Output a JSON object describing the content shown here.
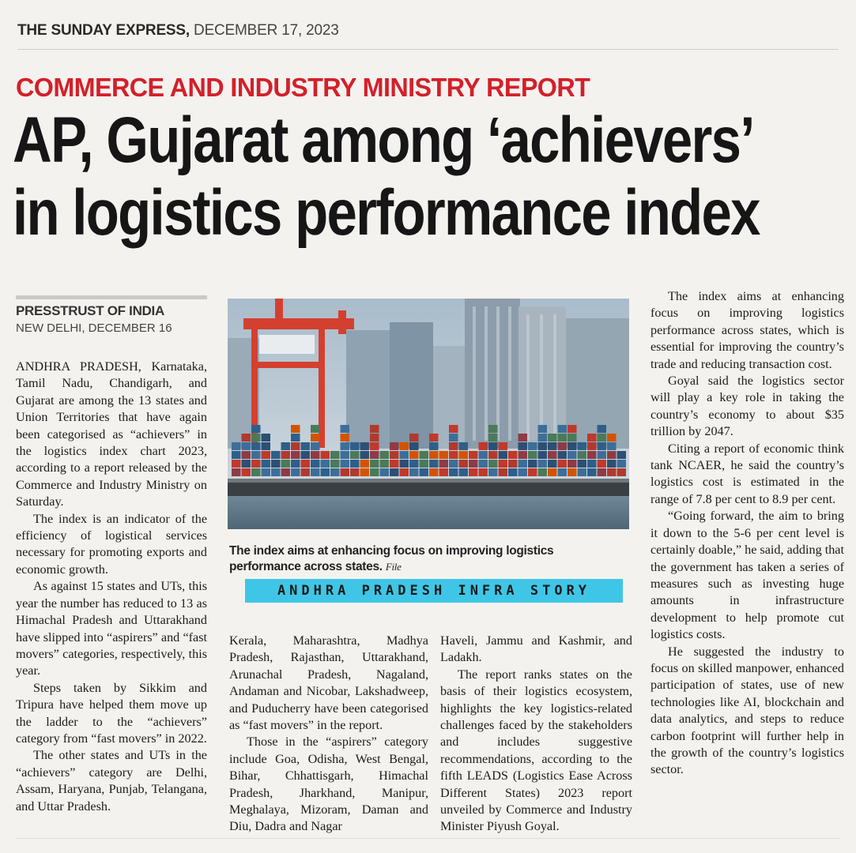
{
  "masthead": {
    "paper": "THE SUNDAY EXPRESS,",
    "date": "DECEMBER 17, 2023"
  },
  "kicker": "COMMERCE AND INDUSTRY MINISTRY REPORT",
  "headline": {
    "line1": "AP, Gujarat among ‘achievers’",
    "line2": "in logistics performance index"
  },
  "byline": {
    "agency": "PRESSTRUST OF INDIA",
    "dateline": "NEW DELHI, DECEMBER 16"
  },
  "photo": {
    "caption": "The index aims at enhancing focus on improving logistics performance across states.",
    "credit": "File",
    "alt": "container-port-with-cranes"
  },
  "banner": "ANDHRA PRADESH INFRA STORY",
  "colors": {
    "kicker": "#d3202a",
    "banner": "#3fc6e6"
  },
  "col1": [
    "ANDHRA PRADESH, Karnataka, Tamil Nadu, Chandigarh, and Gujarat are among the 13 states and Union Territories that have again been categorised as “achievers” in the logistics index chart 2023, according to a report released by the Commerce and Industry Ministry on Saturday.",
    "The index is an indicator of the efficiency of logistical services necessary for promoting exports and economic growth.",
    "As against 15 states and UTs, this year the number has reduced to 13 as Himachal Pradesh and Uttarakhand have slipped into “aspirers” and “fast movers” categories, respectively, this year.",
    "Steps taken by Sikkim and Tripura have helped them move up the ladder to the “achievers” category from “fast movers” in 2022.",
    "The other states and UTs in the “achievers” category are Delhi, Assam, Haryana, Punjab, Telangana, and Uttar Pradesh."
  ],
  "col2": [
    "Kerala, Maharashtra, Madhya Pradesh, Rajasthan, Uttarakhand, Arunachal Pradesh, Nagaland, Andaman and Nicobar, Lakshadweep, and Puducherry have been categorised as “fast movers” in the report.",
    "Those in the “aspirers” category include Goa, Odisha, West Bengal, Bihar, Chhattisgarh, Himachal Pradesh, Jharkhand, Manipur, Meghalaya, Mizoram, Daman and Diu, Dadra and Nagar"
  ],
  "col3": [
    "Haveli, Jammu and Kashmir, and Ladakh.",
    "The report ranks states on the basis of their logistics ecosystem, highlights the key logistics-related challenges faced by the stakeholders and includes suggestive recommendations, according to the fifth LEADS (Logistics Ease Across Different States) 2023 report unveiled by Commerce and Industry Minister Piyush Goyal."
  ],
  "col4": [
    "The index aims at enhancing focus on improving logistics performance across states, which is essential for improving the country’s trade and reducing transaction cost.",
    "Goyal said the logistics sector will play a key role in taking the country’s economy to about $35 trillion by 2047.",
    "Citing a report of economic think tank NCAER, he said the country’s logistics cost is estimated in the range of 7.8 per cent to 8.9 per cent.",
    "“Going forward, the aim to bring it down to the 5-6 per cent level is certainly doable,” he said, adding that the government has taken a series of measures such as investing huge amounts in infrastructure development to help promote cut logistics costs.",
    "He suggested the industry to focus on skilled manpower, enhanced participation of states, use of new technologies like AI, blockchain and data analytics, and steps to reduce carbon footprint will further help in the growth of the country’s logistics sector."
  ]
}
